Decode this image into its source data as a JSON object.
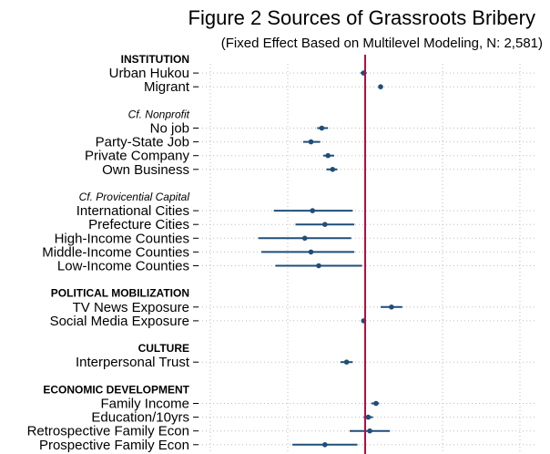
{
  "chart_data": {
    "type": "coefficient-plot",
    "title": "Figure 2 Sources of Grassroots Bribery",
    "subtitle": "(Fixed Effect Based on Multilevel Modeling, N: 2,581)",
    "reference_line": 0,
    "xlim": [
      -1.0,
      1.0
    ],
    "grid": true,
    "colors": {
      "point": "#1f4e79",
      "reference_line": "#b0103f",
      "grid": "#bdbdbd"
    },
    "rows": [
      {
        "kind": "header",
        "text": "INSTITUTION"
      },
      {
        "kind": "item",
        "label": "Urban Hukou",
        "estimate": -0.01,
        "ci": [
          -0.03,
          0.01
        ]
      },
      {
        "kind": "item",
        "label": "Migrant",
        "estimate": 0.1,
        "ci": [
          0.09,
          0.11
        ]
      },
      {
        "kind": "gap"
      },
      {
        "kind": "subheader",
        "text": "Cf. Nonprofit"
      },
      {
        "kind": "item",
        "label": "No job",
        "estimate": -0.28,
        "ci": [
          -0.31,
          -0.24
        ]
      },
      {
        "kind": "item",
        "label": "Party-State Job",
        "estimate": -0.35,
        "ci": [
          -0.4,
          -0.29
        ]
      },
      {
        "kind": "item",
        "label": "Private Company",
        "estimate": -0.24,
        "ci": [
          -0.27,
          -0.2
        ]
      },
      {
        "kind": "item",
        "label": "Own Business",
        "estimate": -0.21,
        "ci": [
          -0.25,
          -0.18
        ]
      },
      {
        "kind": "gap"
      },
      {
        "kind": "subheader",
        "text": "Cf. Provicential Capital"
      },
      {
        "kind": "item",
        "label": "International Cities",
        "estimate": -0.34,
        "ci": [
          -0.59,
          -0.08
        ]
      },
      {
        "kind": "item",
        "label": "Prefecture Cities",
        "estimate": -0.26,
        "ci": [
          -0.45,
          -0.07
        ]
      },
      {
        "kind": "item",
        "label": "High-Income Counties",
        "estimate": -0.39,
        "ci": [
          -0.69,
          -0.09
        ]
      },
      {
        "kind": "item",
        "label": "Middle-Income Counties",
        "estimate": -0.35,
        "ci": [
          -0.67,
          -0.07
        ]
      },
      {
        "kind": "item",
        "label": "Low-Income Counties",
        "estimate": -0.3,
        "ci": [
          -0.58,
          -0.02
        ]
      },
      {
        "kind": "gap"
      },
      {
        "kind": "header",
        "text": "POLITICAL MOBILIZATION"
      },
      {
        "kind": "item",
        "label": "TV News Exposure",
        "estimate": 0.17,
        "ci": [
          0.1,
          0.24
        ]
      },
      {
        "kind": "item",
        "label": "Social Media Exposure",
        "estimate": -0.01,
        "ci": [
          -0.02,
          0.0
        ]
      },
      {
        "kind": "gap"
      },
      {
        "kind": "header",
        "text": "CULTURE"
      },
      {
        "kind": "item",
        "label": "Interpersonal Trust",
        "estimate": -0.12,
        "ci": [
          -0.16,
          -0.08
        ]
      },
      {
        "kind": "gap"
      },
      {
        "kind": "header",
        "text": "ECONOMIC DEVELOPMENT"
      },
      {
        "kind": "item",
        "label": "Family Income",
        "estimate": 0.07,
        "ci": [
          0.04,
          0.09
        ]
      },
      {
        "kind": "item",
        "label": "Education/10yrs",
        "estimate": 0.02,
        "ci": [
          -0.01,
          0.05
        ]
      },
      {
        "kind": "item",
        "label": "Retrospective Family Econ",
        "estimate": 0.03,
        "ci": [
          -0.1,
          0.16
        ]
      },
      {
        "kind": "item",
        "label": "Prospective Family Econ",
        "estimate": -0.26,
        "ci": [
          -0.47,
          -0.05
        ]
      }
    ]
  }
}
